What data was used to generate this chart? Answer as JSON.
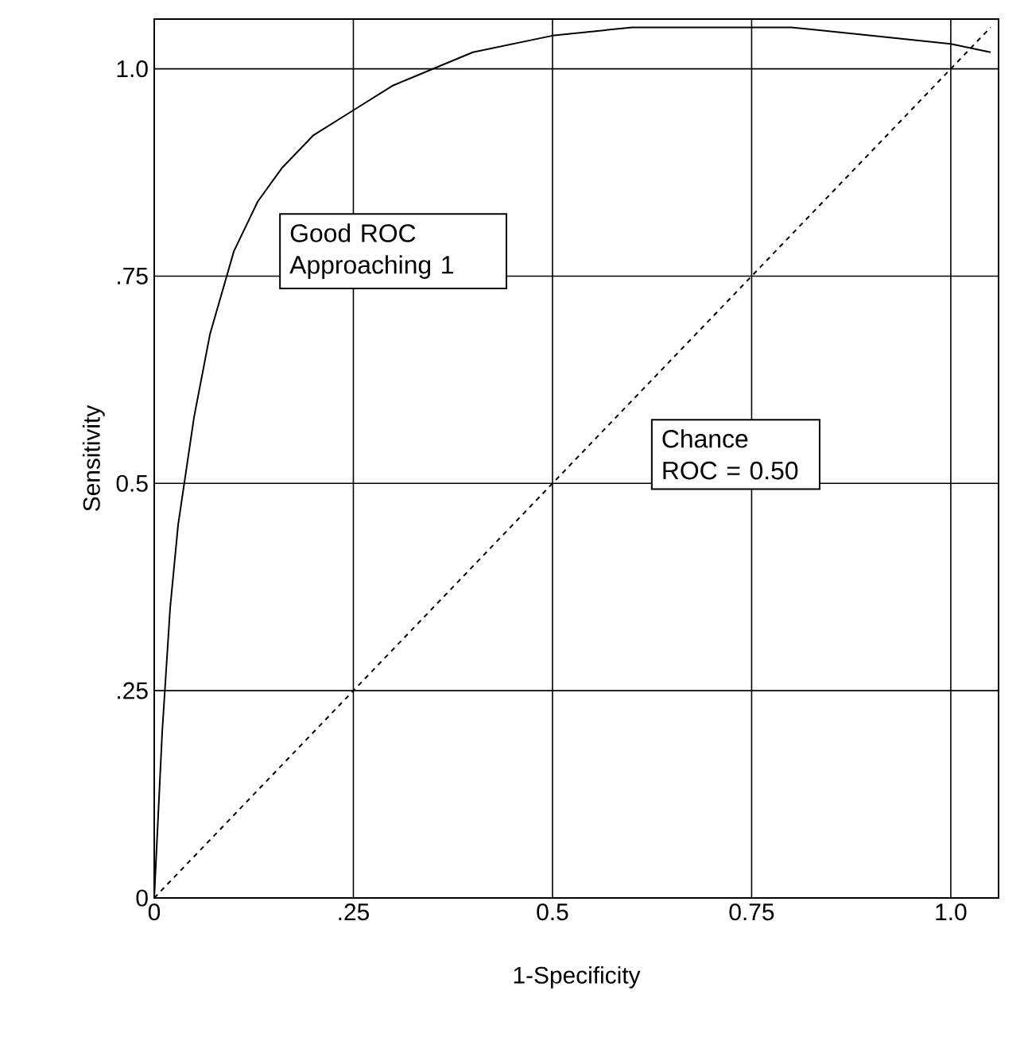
{
  "chart_data": {
    "type": "line",
    "xlabel": "1-Specificity",
    "ylabel": "Sensitivity",
    "xlim": [
      0,
      1.06
    ],
    "ylim": [
      0,
      1.06
    ],
    "xticks": [
      0,
      {
        "value": 0.25,
        "label": ".25"
      },
      {
        "value": 0.5,
        "label": "0.5"
      },
      {
        "value": 0.75,
        "label": "0.75"
      },
      {
        "value": 1,
        "label": "1.0"
      }
    ],
    "yticks": [
      0,
      {
        "value": 0.25,
        "label": ".25"
      },
      {
        "value": 0.5,
        "label": "0.5"
      },
      {
        "value": 0.75,
        "label": ".75"
      },
      {
        "value": 1,
        "label": "1.0"
      }
    ],
    "grid": true,
    "series": [
      {
        "color": "#000000",
        "line_style": "solid",
        "x": [
          0,
          0.005,
          0.01,
          0.02,
          0.03,
          0.05,
          0.07,
          0.1,
          0.13,
          0.16,
          0.2,
          0.25,
          0.3,
          0.35,
          0.4,
          0.5,
          0.6,
          0.7,
          0.8,
          0.9,
          1.0,
          1.05
        ],
        "values": [
          0,
          0.1,
          0.2,
          0.35,
          0.45,
          0.58,
          0.68,
          0.78,
          0.84,
          0.88,
          0.92,
          0.95,
          0.98,
          1.0,
          1.02,
          1.04,
          1.05,
          1.05,
          1.05,
          1.04,
          1.03,
          1.02
        ]
      },
      {
        "color": "#000000",
        "line_style": "dashed",
        "x": [
          0,
          1.05
        ],
        "values": [
          0,
          1.05
        ]
      }
    ],
    "annotations": [
      "Good ROC Approaching 1",
      "Chance ROC = 0.50"
    ]
  }
}
